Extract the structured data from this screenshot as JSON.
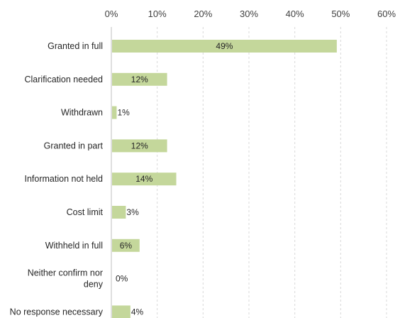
{
  "chart_data": {
    "type": "bar",
    "orientation": "horizontal",
    "title": "",
    "xlabel": "",
    "ylabel": "",
    "xlim": [
      0,
      60
    ],
    "x_ticks": [
      "0%",
      "10%",
      "20%",
      "30%",
      "40%",
      "50%",
      "60%"
    ],
    "x_axis_position": "top",
    "grid": true,
    "categories": [
      "Granted in full",
      "Clarification needed",
      "Withdrawn",
      "Granted in part",
      "Information not held",
      "Cost limit",
      "Withheld in full",
      "Neither confirm nor deny",
      "No response necessary"
    ],
    "values": [
      49,
      12,
      1,
      12,
      14,
      3,
      6,
      0,
      4
    ],
    "data_labels": [
      "49%",
      "12%",
      "1%",
      "12%",
      "14%",
      "3%",
      "6%",
      "0%",
      "4%"
    ],
    "bar_color": "#c4d79b"
  }
}
